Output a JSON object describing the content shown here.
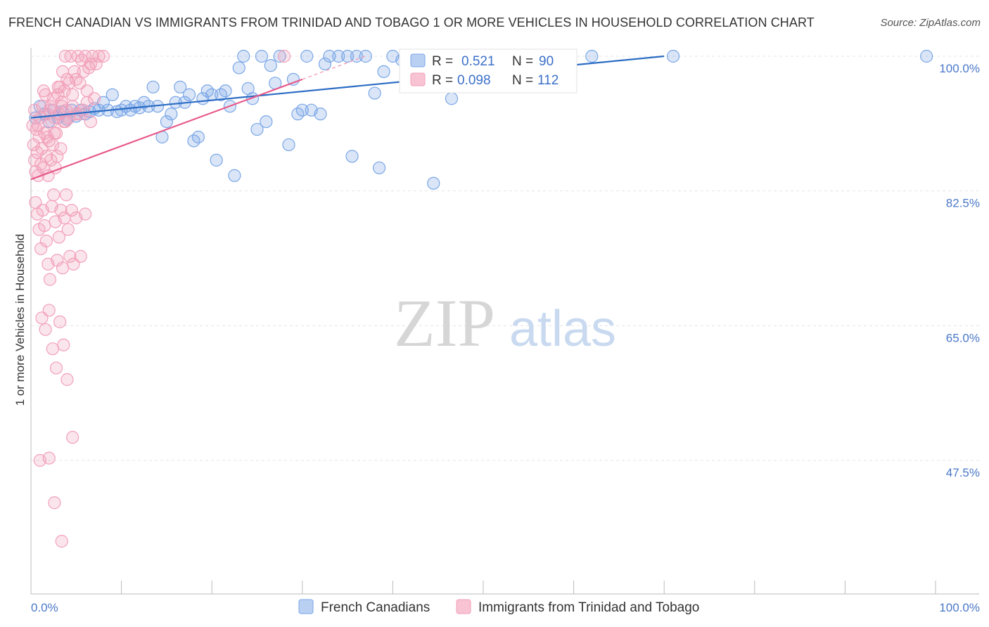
{
  "chart_data": {
    "type": "scatter",
    "title": "FRENCH CANADIAN VS IMMIGRANTS FROM TRINIDAD AND TOBAGO 1 OR MORE VEHICLES IN HOUSEHOLD CORRELATION CHART",
    "source": "Source: ZipAtlas.com",
    "watermark": {
      "zip": "ZIP",
      "atlas": "atlas"
    },
    "xlabel": "",
    "ylabel": "1 or more Vehicles in Household",
    "xlim": [
      0,
      100
    ],
    "ylim": [
      34,
      102
    ],
    "x_tick_labels": [
      "0.0%",
      "100.0%"
    ],
    "y_ticks": [
      100,
      82.5,
      65,
      47.5
    ],
    "y_tick_labels": [
      "100.0%",
      "82.5%",
      "65.0%",
      "47.5%"
    ],
    "grid": true,
    "legend": {
      "position": "top-center",
      "entries": [
        {
          "r_label": "R =",
          "r_value": "0.521",
          "n_label": "N =",
          "n_value": "90"
        },
        {
          "r_label": "R =",
          "r_value": "0.098",
          "n_label": "N =",
          "n_value": "112"
        }
      ]
    },
    "series": [
      {
        "name": "French Canadians",
        "color": "#7aa6e6",
        "trend_color": "#2b6cc4",
        "trend": {
          "x": [
            0,
            70
          ],
          "y": [
            92.0,
            100.0
          ]
        },
        "points": [
          [
            0.5,
            92.0
          ],
          [
            1.0,
            93.5
          ],
          [
            1.5,
            92.5
          ],
          [
            2.0,
            91.5
          ],
          [
            2.5,
            93.0
          ],
          [
            3.0,
            92.0
          ],
          [
            3.5,
            92.8
          ],
          [
            4.0,
            91.8
          ],
          [
            4.5,
            93.0
          ],
          [
            5.0,
            92.2
          ],
          [
            5.5,
            93.0
          ],
          [
            6.0,
            92.5
          ],
          [
            6.5,
            92.8
          ],
          [
            7.0,
            93.2
          ],
          [
            7.5,
            93.0
          ],
          [
            8.0,
            94.0
          ],
          [
            8.5,
            93.0
          ],
          [
            9.0,
            95.0
          ],
          [
            9.5,
            92.8
          ],
          [
            10.0,
            93.0
          ],
          [
            10.5,
            93.5
          ],
          [
            11.0,
            93.0
          ],
          [
            11.5,
            93.5
          ],
          [
            12.0,
            93.3
          ],
          [
            12.5,
            94.0
          ],
          [
            13.0,
            93.5
          ],
          [
            13.5,
            96.0
          ],
          [
            14.0,
            93.5
          ],
          [
            14.5,
            89.5
          ],
          [
            15.0,
            91.5
          ],
          [
            15.5,
            92.5
          ],
          [
            16.0,
            94.0
          ],
          [
            16.5,
            96.0
          ],
          [
            17.0,
            94.0
          ],
          [
            17.5,
            95.0
          ],
          [
            18.0,
            89.0
          ],
          [
            18.5,
            89.5
          ],
          [
            19.0,
            94.5
          ],
          [
            19.5,
            95.5
          ],
          [
            20.0,
            95.0
          ],
          [
            20.5,
            86.5
          ],
          [
            21.0,
            95.0
          ],
          [
            21.5,
            95.5
          ],
          [
            22.0,
            93.5
          ],
          [
            22.5,
            84.5
          ],
          [
            23.0,
            98.5
          ],
          [
            23.5,
            100.0
          ],
          [
            24.0,
            95.8
          ],
          [
            24.5,
            94.5
          ],
          [
            25.0,
            90.5
          ],
          [
            25.5,
            100.0
          ],
          [
            26.0,
            91.5
          ],
          [
            26.5,
            98.8
          ],
          [
            27.0,
            96.5
          ],
          [
            27.5,
            100.0
          ],
          [
            28.5,
            88.5
          ],
          [
            29.0,
            97.0
          ],
          [
            29.5,
            92.5
          ],
          [
            30.0,
            93.0
          ],
          [
            30.5,
            100.0
          ],
          [
            31.0,
            93.0
          ],
          [
            32.0,
            92.5
          ],
          [
            32.5,
            99.0
          ],
          [
            33.0,
            100.0
          ],
          [
            34.0,
            100.0
          ],
          [
            35.0,
            100.0
          ],
          [
            35.5,
            87.0
          ],
          [
            36.0,
            100.0
          ],
          [
            37.0,
            100.0
          ],
          [
            38.0,
            95.2
          ],
          [
            38.5,
            85.5
          ],
          [
            39.0,
            98.0
          ],
          [
            40.0,
            100.0
          ],
          [
            41.0,
            99.5
          ],
          [
            42.0,
            100.0
          ],
          [
            43.5,
            100.0
          ],
          [
            44.0,
            100.0
          ],
          [
            44.5,
            83.5
          ],
          [
            46.5,
            94.5
          ],
          [
            47.0,
            100.0
          ],
          [
            48.5,
            100.0
          ],
          [
            49.0,
            100.0
          ],
          [
            52.0,
            100.0
          ],
          [
            53.0,
            100.0
          ],
          [
            55.0,
            100.0
          ],
          [
            57.0,
            100.0
          ],
          [
            59.5,
            100.0
          ],
          [
            62.0,
            100.0
          ],
          [
            71.0,
            100.0
          ],
          [
            99.0,
            100.0
          ]
        ]
      },
      {
        "name": "Immigrants from Trinidad and Tobago",
        "color": "#f2a0ba",
        "trend_color": "#e8588a",
        "trend": {
          "x": [
            0,
            30
          ],
          "y": [
            84.0,
            97.0
          ]
        },
        "points": [
          [
            0.2,
            91.0
          ],
          [
            0.3,
            88.5
          ],
          [
            0.4,
            86.5
          ],
          [
            0.5,
            85.0
          ],
          [
            0.6,
            90.5
          ],
          [
            0.7,
            87.5
          ],
          [
            0.8,
            84.5
          ],
          [
            0.9,
            89.5
          ],
          [
            1.0,
            92.0
          ],
          [
            1.1,
            86.0
          ],
          [
            1.2,
            88.0
          ],
          [
            1.3,
            93.5
          ],
          [
            1.4,
            85.5
          ],
          [
            1.5,
            90.0
          ],
          [
            1.6,
            95.0
          ],
          [
            1.7,
            87.0
          ],
          [
            1.8,
            92.5
          ],
          [
            1.9,
            84.5
          ],
          [
            2.0,
            89.0
          ],
          [
            2.1,
            93.0
          ],
          [
            2.2,
            86.5
          ],
          [
            2.3,
            91.5
          ],
          [
            2.4,
            88.5
          ],
          [
            2.5,
            94.5
          ],
          [
            2.6,
            92.0
          ],
          [
            2.7,
            85.5
          ],
          [
            2.8,
            90.0
          ],
          [
            2.9,
            87.0
          ],
          [
            3.0,
            95.0
          ],
          [
            3.1,
            92.5
          ],
          [
            3.2,
            96.0
          ],
          [
            3.3,
            88.0
          ],
          [
            3.4,
            93.5
          ],
          [
            3.5,
            98.0
          ],
          [
            3.6,
            91.5
          ],
          [
            3.7,
            95.5
          ],
          [
            3.8,
            100.0
          ],
          [
            3.9,
            93.0
          ],
          [
            4.0,
            97.0
          ],
          [
            4.2,
            92.0
          ],
          [
            4.4,
            100.0
          ],
          [
            4.6,
            95.0
          ],
          [
            4.8,
            98.0
          ],
          [
            5.0,
            92.5
          ],
          [
            5.2,
            100.0
          ],
          [
            5.4,
            96.5
          ],
          [
            5.6,
            99.5
          ],
          [
            5.8,
            93.0
          ],
          [
            6.0,
            100.0
          ],
          [
            6.2,
            95.5
          ],
          [
            6.4,
            98.5
          ],
          [
            6.6,
            91.5
          ],
          [
            6.8,
            100.0
          ],
          [
            7.0,
            94.5
          ],
          [
            7.2,
            99.0
          ],
          [
            7.5,
            100.0
          ],
          [
            8.0,
            100.0
          ],
          [
            0.5,
            81.0
          ],
          [
            0.7,
            79.5
          ],
          [
            0.9,
            77.5
          ],
          [
            1.1,
            75.0
          ],
          [
            1.3,
            80.0
          ],
          [
            1.5,
            78.0
          ],
          [
            1.7,
            76.0
          ],
          [
            1.9,
            73.0
          ],
          [
            2.1,
            71.0
          ],
          [
            2.3,
            80.5
          ],
          [
            2.5,
            82.0
          ],
          [
            2.7,
            78.5
          ],
          [
            2.9,
            73.5
          ],
          [
            3.1,
            76.5
          ],
          [
            3.3,
            80.0
          ],
          [
            3.5,
            72.5
          ],
          [
            3.7,
            79.0
          ],
          [
            3.9,
            82.0
          ],
          [
            4.1,
            77.5
          ],
          [
            4.3,
            74.0
          ],
          [
            4.5,
            80.0
          ],
          [
            4.7,
            73.0
          ],
          [
            5.0,
            79.0
          ],
          [
            5.5,
            74.0
          ],
          [
            6.0,
            79.5
          ],
          [
            1.2,
            66.0
          ],
          [
            1.6,
            64.5
          ],
          [
            2.0,
            67.0
          ],
          [
            2.4,
            62.0
          ],
          [
            2.8,
            59.5
          ],
          [
            3.2,
            65.5
          ],
          [
            3.6,
            62.5
          ],
          [
            4.0,
            58.0
          ],
          [
            4.6,
            50.5
          ],
          [
            1.0,
            47.5
          ],
          [
            2.0,
            47.8
          ],
          [
            2.6,
            42.0
          ],
          [
            3.4,
            37.0
          ],
          [
            0.4,
            93.0
          ],
          [
            0.8,
            91.0
          ],
          [
            1.4,
            95.5
          ],
          [
            1.8,
            89.5
          ],
          [
            2.2,
            93.5
          ],
          [
            2.6,
            90.0
          ],
          [
            3.0,
            96.0
          ],
          [
            3.4,
            94.0
          ],
          [
            3.8,
            91.5
          ],
          [
            4.2,
            96.5
          ],
          [
            4.6,
            93.5
          ],
          [
            5.0,
            97.0
          ],
          [
            5.4,
            92.5
          ],
          [
            5.8,
            98.0
          ],
          [
            6.2,
            94.0
          ],
          [
            6.6,
            99.0
          ],
          [
            28.0,
            100.0
          ]
        ]
      }
    ]
  },
  "bottom_legend": [
    {
      "label": "French Canadians"
    },
    {
      "label": "Immigrants from Trinidad and Tobago"
    }
  ]
}
